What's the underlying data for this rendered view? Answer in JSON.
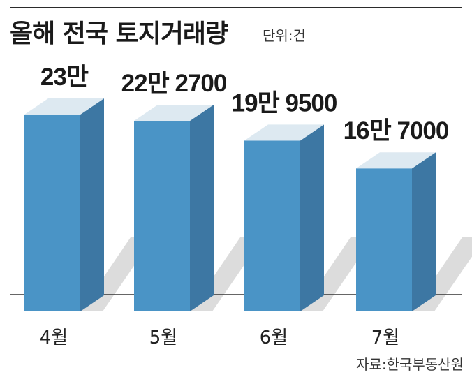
{
  "header": {
    "title": "올해 전국 토지거래량",
    "unit_label": "단위:건"
  },
  "footer": {
    "source": "자료:한국부동산원"
  },
  "colors": {
    "bar_front": "#4a94c6",
    "bar_side": "#3d77a3",
    "bar_top": "#dde9f1",
    "shadow": "#dcdcdc",
    "baseline": "#333333"
  },
  "chart_data": {
    "type": "bar",
    "title": "올해 전국 토지거래량",
    "unit": "단위:건",
    "categories": [
      "4월",
      "5월",
      "6월",
      "7월"
    ],
    "values": [
      230000,
      222700,
      199500,
      167000
    ],
    "value_labels": [
      "23만",
      "22만 2700",
      "19만 9500",
      "16만 7000"
    ],
    "xlabel": "",
    "ylabel": "",
    "grid": false,
    "legend": "none"
  }
}
